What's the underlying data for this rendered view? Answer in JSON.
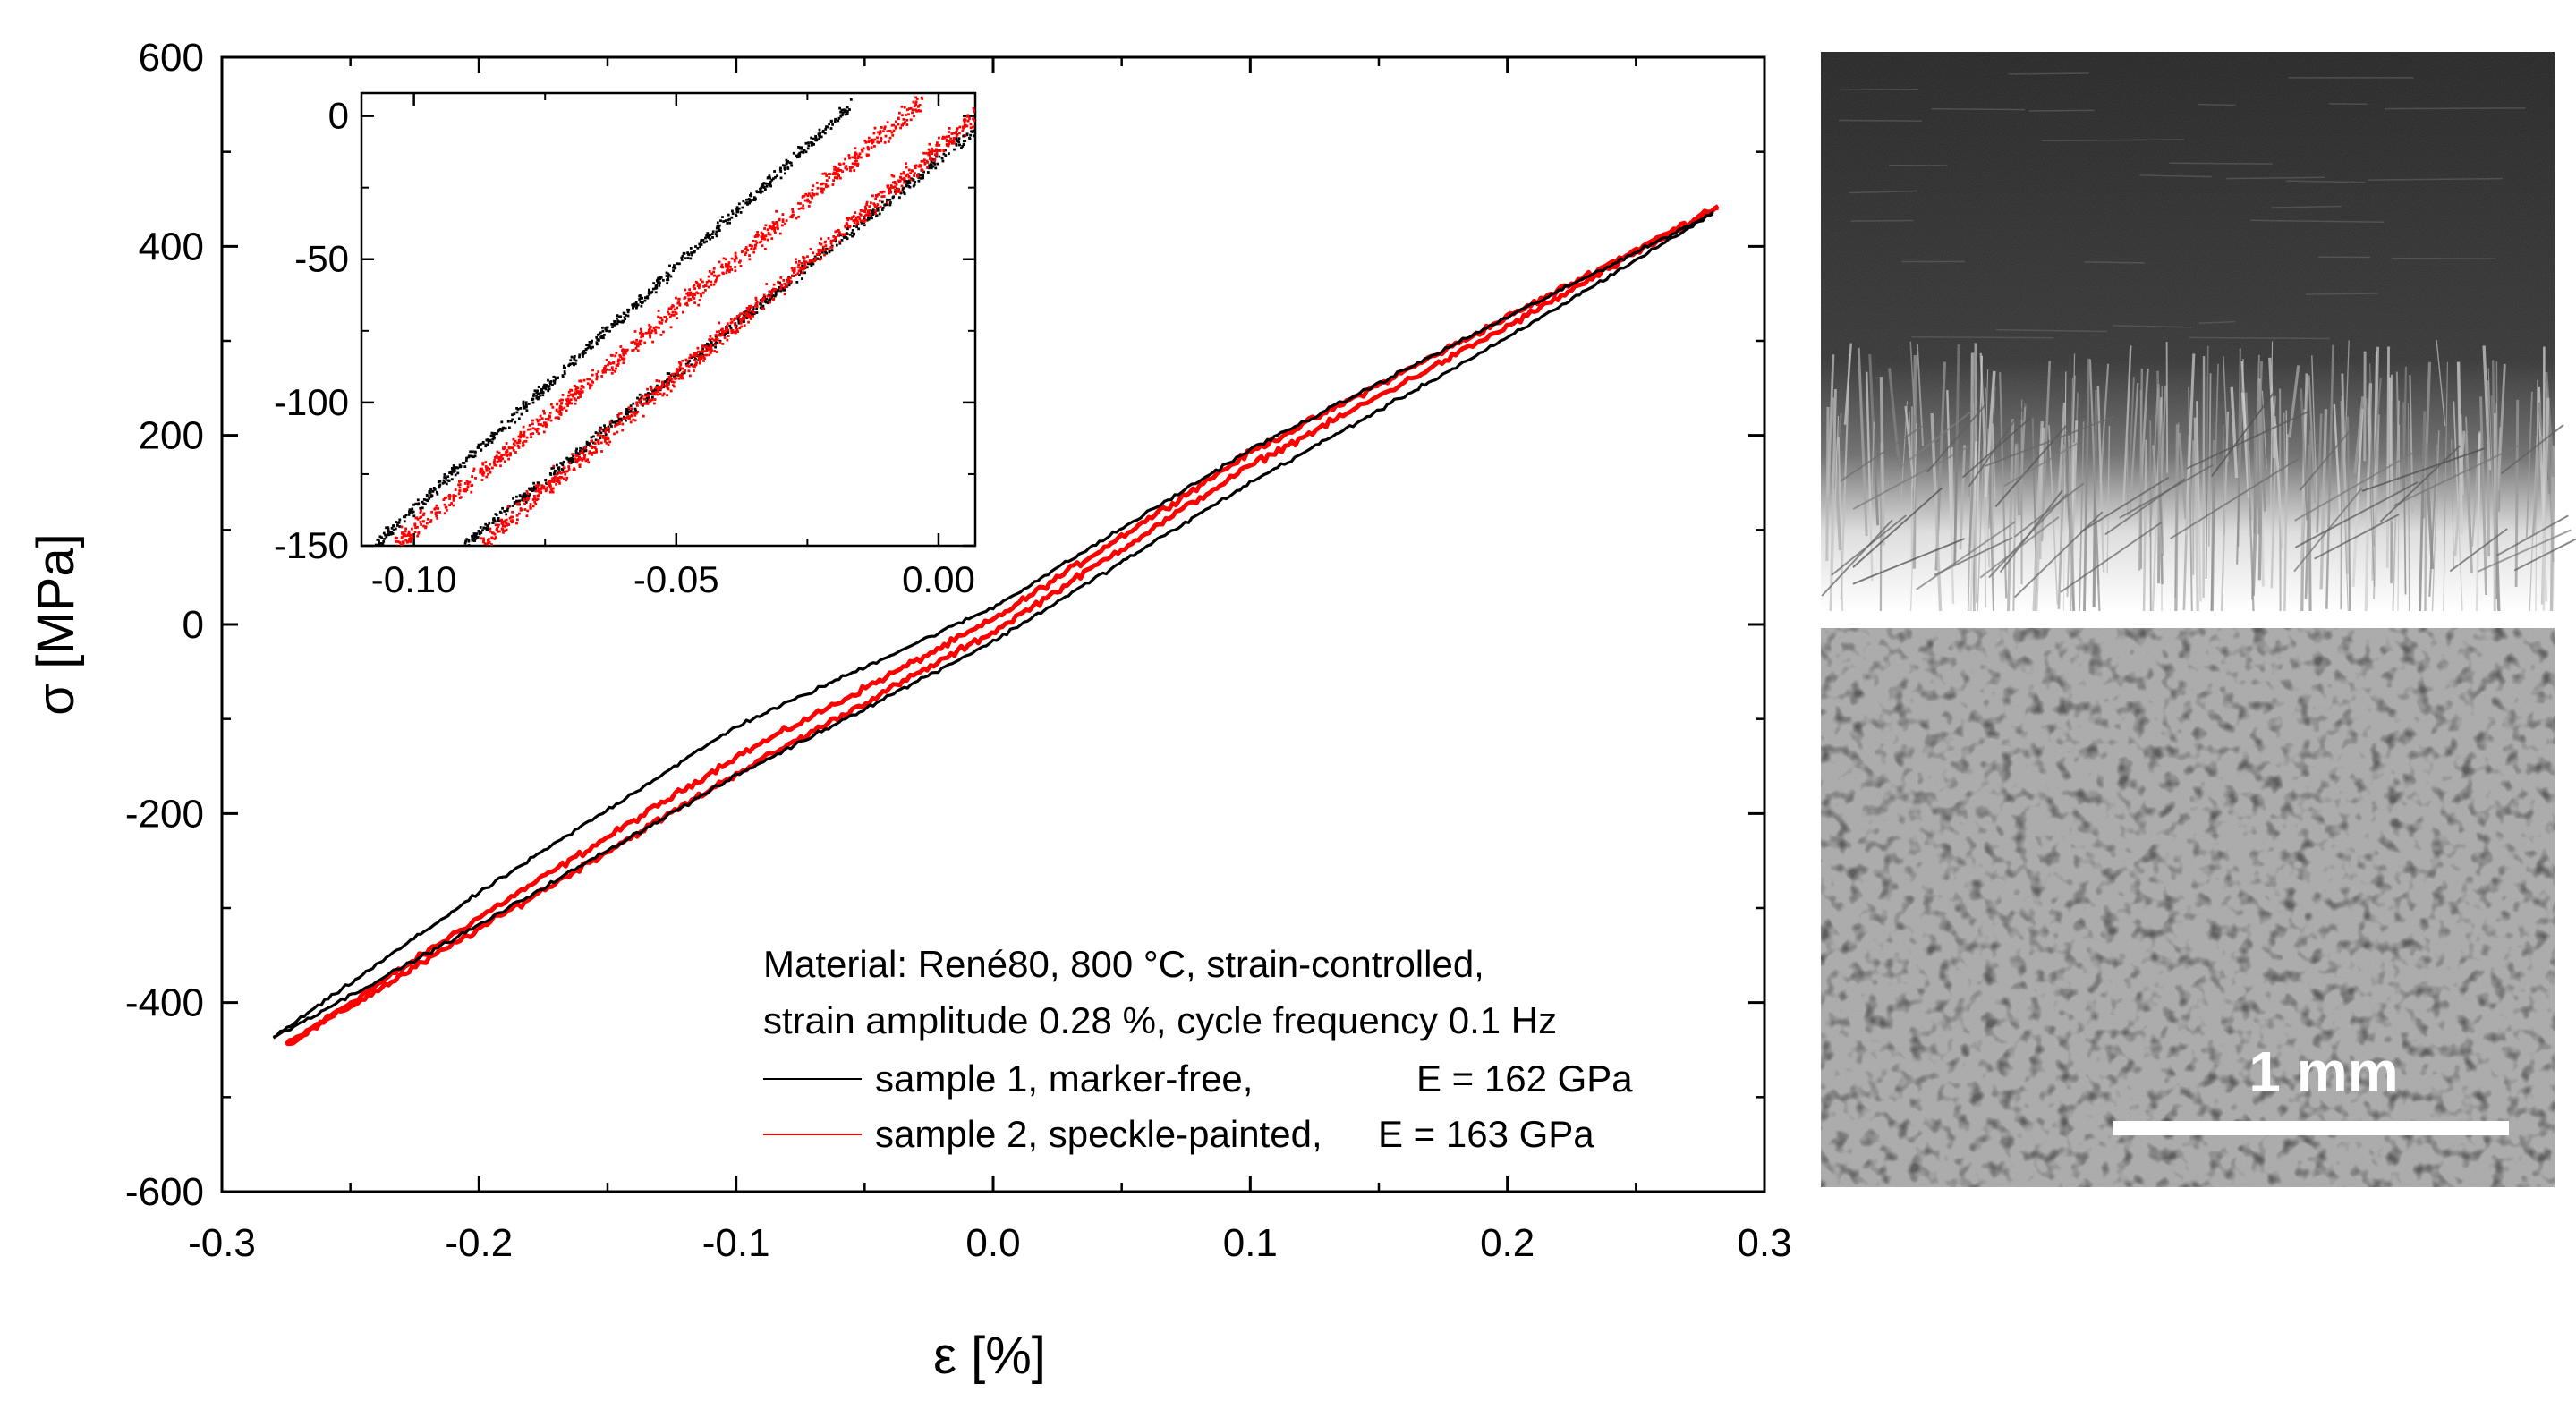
{
  "chart_data": [
    {
      "type": "line",
      "xlabel": "ε [%]",
      "ylabel": "σ [MPa]",
      "xlim": [
        -0.3,
        0.3
      ],
      "ylim": [
        -600,
        600
      ],
      "x_ticks": [
        -0.3,
        -0.2,
        -0.1,
        0.0,
        0.1,
        0.2,
        0.3
      ],
      "x_tick_labels": [
        "-0.3",
        "-0.2",
        "-0.1",
        "0.0",
        "0.1",
        "0.2",
        "0.3"
      ],
      "y_ticks": [
        -600,
        -400,
        -200,
        0,
        200,
        400,
        600
      ],
      "y_tick_labels": [
        "-600",
        "-400",
        "-200",
        "0",
        "200",
        "400",
        "600"
      ],
      "annotation_lines": [
        "Material: René80, 800 °C, strain-controlled,",
        "strain amplitude 0.28 %, cycle frequency 0.1 Hz"
      ],
      "series": [
        {
          "name": "sample 1, marker-free,",
          "modulus_label": "E = 162 GPa",
          "color": "#000000",
          "upper_branch": {
            "x": [
              -0.28,
              -0.2,
              -0.1,
              0.0,
              0.1,
              0.2,
              0.28
            ],
            "y": [
              -437,
              -284,
              -108,
              18,
              185,
              325,
              435
            ]
          },
          "lower_branch": {
            "x": [
              -0.28,
              -0.2,
              -0.1,
              0.0,
              0.1,
              0.2,
              0.28
            ],
            "y": [
              -437,
              -318,
              -160,
              -18,
              150,
              303,
              435
            ]
          }
        },
        {
          "name": "sample 2, speckle-painted,",
          "modulus_label": "E = 163 GPa",
          "color": "#ff0000",
          "upper_branch": {
            "x": [
              -0.275,
              -0.2,
              -0.1,
              0.0,
              0.1,
              0.2,
              0.282
            ],
            "y": [
              -445,
              -310,
              -140,
              5,
              182,
              325,
              442
            ]
          },
          "lower_branch": {
            "x": [
              -0.275,
              -0.2,
              -0.1,
              0.0,
              0.1,
              0.2,
              0.282
            ],
            "y": [
              -445,
              -322,
              -158,
              -8,
              168,
              315,
              442
            ]
          }
        }
      ]
    },
    {
      "type": "scatter",
      "description": "inset",
      "xlim": [
        -0.11,
        0.007
      ],
      "ylim": [
        -150,
        8
      ],
      "x_ticks": [
        -0.1,
        -0.05,
        0.0
      ],
      "x_tick_labels": [
        "-0.10",
        "-0.05",
        "0.00"
      ],
      "y_ticks": [
        0,
        -50,
        -100,
        -150
      ],
      "y_tick_labels": [
        "0",
        "-50",
        "-100",
        "-150"
      ],
      "series": [
        {
          "name": "sample 1 upper",
          "color": "#000000",
          "x": [
            -0.1075,
            -0.0165
          ],
          "y": [
            -150,
            4
          ]
        },
        {
          "name": "sample 1 lower",
          "color": "#000000",
          "x": [
            -0.0905,
            0.007
          ],
          "y": [
            -150,
            -5
          ]
        },
        {
          "name": "sample 2 upper",
          "color": "#ff0000",
          "x": [
            -0.1035,
            -0.003
          ],
          "y": [
            -150,
            5
          ]
        },
        {
          "name": "sample 2 lower",
          "color": "#ff0000",
          "x": [
            -0.0875,
            0.007
          ],
          "y": [
            -150,
            0
          ]
        }
      ]
    }
  ],
  "micrographs": {
    "scale_bar_label": "1 mm"
  }
}
